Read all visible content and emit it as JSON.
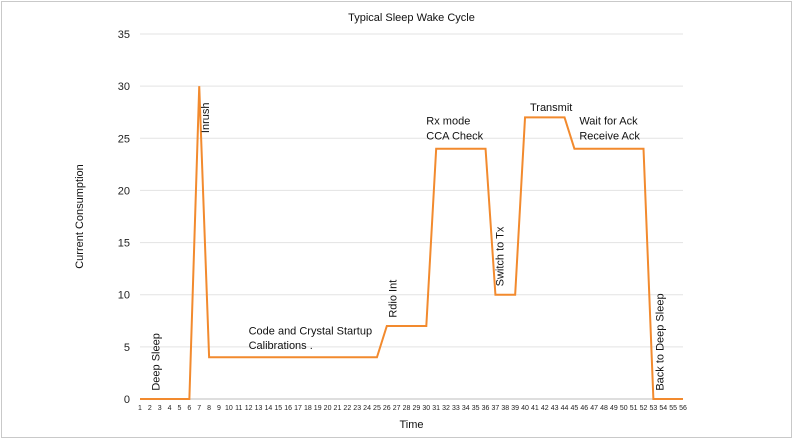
{
  "chart_data": {
    "type": "line",
    "title": "Typical Sleep Wake Cycle",
    "xlabel": "Time",
    "ylabel": "Current Consumption",
    "ylim": [
      0,
      35
    ],
    "yticks": [
      0,
      5,
      10,
      15,
      20,
      25,
      30,
      35
    ],
    "xticks": [
      1,
      2,
      3,
      4,
      5,
      6,
      7,
      8,
      9,
      10,
      11,
      12,
      13,
      14,
      15,
      16,
      17,
      18,
      19,
      20,
      21,
      22,
      23,
      24,
      25,
      26,
      27,
      28,
      29,
      30,
      31,
      32,
      33,
      34,
      35,
      36,
      37,
      38,
      39,
      40,
      41,
      42,
      43,
      44,
      45,
      46,
      47,
      48,
      49,
      50,
      51,
      52,
      53,
      54,
      55,
      56
    ],
    "grid": true,
    "line_color": "#f28a2e",
    "series": [
      {
        "x": [
          1,
          6,
          7,
          8,
          25,
          26,
          30,
          31,
          36,
          37,
          39,
          40,
          44,
          45,
          52,
          53,
          56
        ],
        "values": [
          0,
          0,
          30,
          4,
          4,
          7,
          7,
          24,
          24,
          10,
          10,
          27,
          27,
          24,
          24,
          0,
          0
        ]
      }
    ],
    "annotations": [
      {
        "text": "Deep Sleep",
        "x": 3,
        "y": 0.8,
        "rotate": true
      },
      {
        "text": "Inrush",
        "x": 8,
        "y": 25.5,
        "rotate": true
      },
      {
        "text": "Code and Crystal Startup",
        "x": 12,
        "y": 6.2,
        "rotate": false
      },
      {
        "text": "Calibrations .",
        "x": 12,
        "y": 4.8,
        "rotate": false
      },
      {
        "text": "Rdio Int",
        "x": 27,
        "y": 7.8,
        "rotate": true
      },
      {
        "text": "Rx mode",
        "x": 30,
        "y": 26.3,
        "rotate": false
      },
      {
        "text": "CCA Check",
        "x": 30,
        "y": 24.9,
        "rotate": false
      },
      {
        "text": "Switch to Tx",
        "x": 37.8,
        "y": 10.8,
        "rotate": true
      },
      {
        "text": "Transmit",
        "x": 40.5,
        "y": 27.6,
        "rotate": false
      },
      {
        "text": "Wait for Ack",
        "x": 45.5,
        "y": 26.3,
        "rotate": false
      },
      {
        "text": "Receive Ack",
        "x": 45.5,
        "y": 24.9,
        "rotate": false
      },
      {
        "text": "Back to Deep Sleep",
        "x": 54,
        "y": 0.8,
        "rotate": true
      }
    ]
  }
}
